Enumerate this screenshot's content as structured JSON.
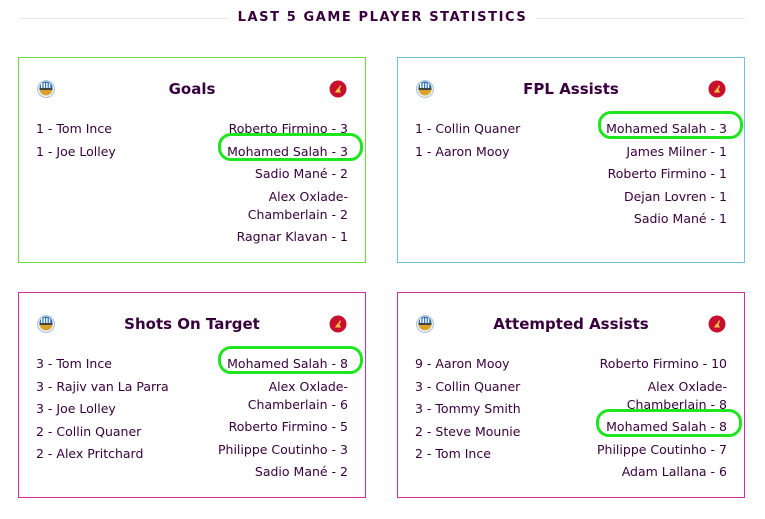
{
  "page": {
    "title": "LAST 5 GAME PLAYER STATISTICS"
  },
  "colors": {
    "green": "#6ddc3c",
    "blue": "#6fc0de",
    "magenta": "#cc2fa0",
    "highlight": "#1ee61e"
  },
  "cards": [
    {
      "title": "Goals",
      "home": [
        "1 - Tom Ince",
        "1 - Joe Lolley"
      ],
      "away": [
        "Roberto Firmino - 3",
        "Mohamed Salah - 3",
        "Sadio Mané - 2",
        "Alex Oxlade-Chamberlain - 2",
        "Ragnar Klavan - 1"
      ]
    },
    {
      "title": "FPL Assists",
      "home": [
        "1 - Collin Quaner",
        "1 - Aaron Mooy"
      ],
      "away": [
        "Mohamed Salah - 3",
        "James Milner - 1",
        "Roberto Firmino - 1",
        "Dejan Lovren - 1",
        "Sadio Mané - 1"
      ]
    },
    {
      "title": "Shots On Target",
      "home": [
        "3 - Tom Ince",
        "3 - Rajiv van La Parra",
        "3 - Joe Lolley",
        "2 - Collin Quaner",
        "2 - Alex Pritchard"
      ],
      "away": [
        "Mohamed Salah - 8",
        "Alex Oxlade-Chamberlain - 6",
        "Roberto Firmino - 5",
        "Philippe Coutinho - 3",
        "Sadio Mané - 2"
      ]
    },
    {
      "title": "Attempted Assists",
      "home": [
        "9 - Aaron Mooy",
        "3 - Collin Quaner",
        "3 - Tommy Smith",
        "2 - Steve Mounie",
        "2 - Tom Ince"
      ],
      "away": [
        "Roberto Firmino - 10",
        "Alex Oxlade-Chamberlain - 8",
        "Mohamed Salah - 8",
        "Philippe Coutinho - 7",
        "Adam Lallana - 6"
      ]
    }
  ]
}
